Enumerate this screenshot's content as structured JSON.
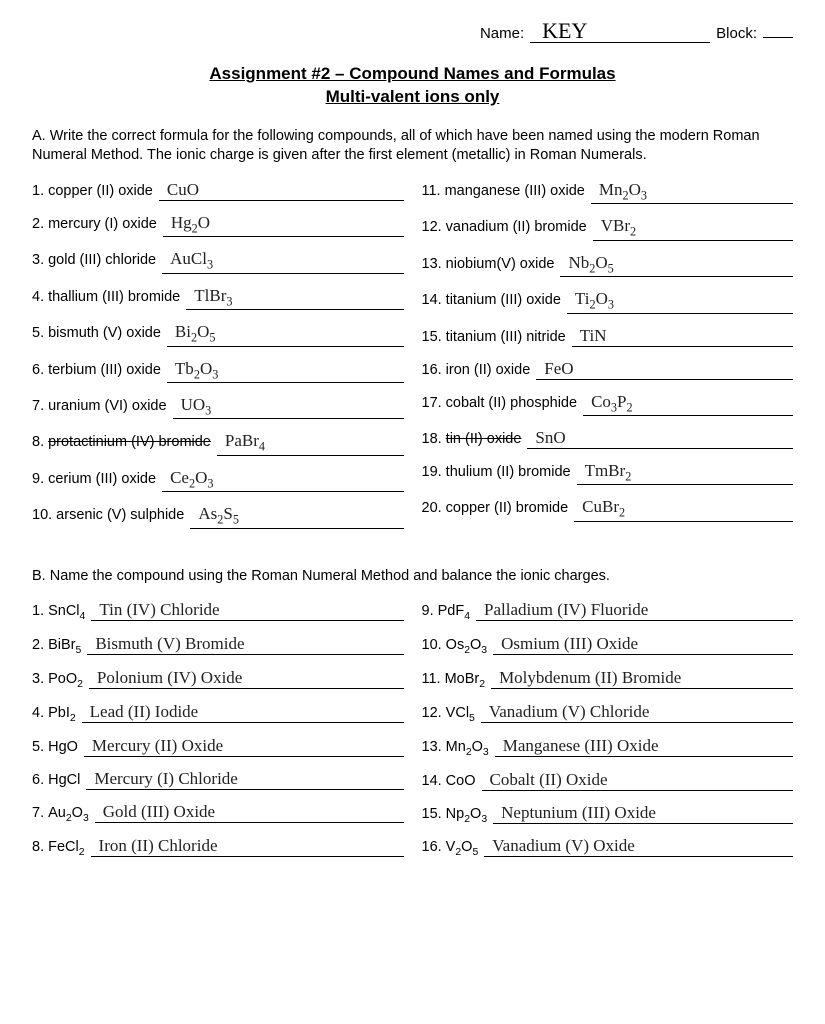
{
  "header": {
    "name_label": "Name:",
    "name_value": "KEY",
    "block_label": "Block:",
    "block_value": ""
  },
  "title_line1": "Assignment #2 – Compound Names and Formulas",
  "title_line2": "Multi-valent ions only",
  "sectionA": {
    "instructions": "A.  Write the correct formula for the following compounds, all of which have been named using the modern Roman Numeral Method.  The ionic charge is given after the first element (metallic) in Roman Numerals.",
    "left": [
      {
        "n": "1.",
        "p": "copper (II) oxide",
        "a": "CuO"
      },
      {
        "n": "2.",
        "p": "mercury (I) oxide",
        "a": "Hg₂O"
      },
      {
        "n": "3.",
        "p": "gold (III) chloride",
        "a": "AuCl₃"
      },
      {
        "n": "4.",
        "p": "thallium (III) bromide",
        "a": "TlBr₃"
      },
      {
        "n": "5.",
        "p": "bismuth (V) oxide",
        "a": "Bi₂O₅"
      },
      {
        "n": "6.",
        "p": "terbium (III) oxide",
        "a": "Tb₂O₃"
      },
      {
        "n": "7.",
        "p": "uranium (VI) oxide",
        "a": "UO₃"
      },
      {
        "n": "8.",
        "p": "protactinium (IV) bromide",
        "a": "PaBr₄",
        "strike": true
      },
      {
        "n": "9.",
        "p": "cerium (III) oxide",
        "a": "Ce₂O₃"
      },
      {
        "n": "10.",
        "p": "arsenic (V) sulphide",
        "a": "As₂S₅"
      }
    ],
    "right": [
      {
        "n": "11.",
        "p": "manganese (III) oxide",
        "a": "Mn₂O₃"
      },
      {
        "n": "12.",
        "p": "vanadium (II) bromide",
        "a": "VBr₂"
      },
      {
        "n": "13.",
        "p": "niobium(V) oxide",
        "a": "Nb₂O₅"
      },
      {
        "n": "14.",
        "p": "titanium (III) oxide",
        "a": "Ti₂O₃"
      },
      {
        "n": "15.",
        "p": "titanium (III) nitride",
        "a": "TiN"
      },
      {
        "n": "16.",
        "p": "iron (II) oxide",
        "a": "FeO"
      },
      {
        "n": "17.",
        "p": "cobalt (II) phosphide",
        "a": "Co₃P₂"
      },
      {
        "n": "18.",
        "p": "tin (II) oxide",
        "a": "SnO",
        "strike": true
      },
      {
        "n": "19.",
        "p": "thulium (II) bromide",
        "a": "TmBr₂"
      },
      {
        "n": "20.",
        "p": "copper (II) bromide",
        "a": "CuBr₂"
      }
    ]
  },
  "sectionB": {
    "instructions": "B.  Name the compound using the Roman Numeral Method and balance the ionic charges.",
    "left": [
      {
        "n": "1.",
        "p": "SnCl₄",
        "a": "Tin (IV) Chloride"
      },
      {
        "n": "2.",
        "p": "BiBr₅",
        "a": "Bismuth (V) Bromide"
      },
      {
        "n": "3.",
        "p": "PoO₂",
        "a": "Polonium (IV) Oxide"
      },
      {
        "n": "4.",
        "p": "PbI₂",
        "a": "Lead (II) Iodide"
      },
      {
        "n": "5.",
        "p": "HgO",
        "a": "Mercury (II) Oxide"
      },
      {
        "n": "6.",
        "p": "HgCl",
        "a": "Mercury (I) Chloride"
      },
      {
        "n": "7.",
        "p": "Au₂O₃",
        "a": "Gold (III) Oxide"
      },
      {
        "n": "8.",
        "p": "FeCl₂",
        "a": "Iron (II) Chloride"
      }
    ],
    "right": [
      {
        "n": "9.",
        "p": "PdF₄",
        "a": "Palladium (IV) Fluoride"
      },
      {
        "n": "10.",
        "p": "Os₂O₃",
        "a": "Osmium (III) Oxide"
      },
      {
        "n": "11.",
        "p": "MoBr₂",
        "a": "Molybdenum (II) Bromide"
      },
      {
        "n": "12.",
        "p": "VCl₅",
        "a": "Vanadium (V) Chloride"
      },
      {
        "n": "13.",
        "p": "Mn₂O₃",
        "a": "Manganese (III) Oxide"
      },
      {
        "n": "14.",
        "p": "CoO",
        "a": "Cobalt (II) Oxide"
      },
      {
        "n": "15.",
        "p": "Np₂O₃",
        "a": "Neptunium (III) Oxide"
      },
      {
        "n": "16.",
        "p": "V₂O₅",
        "a": "Vanadium (V) Oxide"
      }
    ]
  }
}
